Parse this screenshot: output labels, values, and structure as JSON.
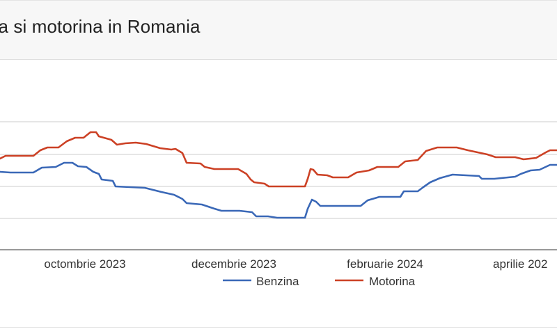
{
  "header": {
    "title": "zina si motorina in Romania"
  },
  "chart_data": {
    "type": "line",
    "x_tick_labels": [
      "octombrie 2023",
      "decembrie 2023",
      "februarie 2024",
      "aprilie 202"
    ],
    "grid": true,
    "legend_position": "bottom",
    "colors": {
      "Benzina": "#3a68b7",
      "Motorina": "#cc4125",
      "grid": "#cccccc",
      "tick_text": "#333333"
    },
    "series": [
      {
        "name": "Benzina",
        "values": [
          [
            0,
            247
          ],
          [
            15,
            248
          ],
          [
            48,
            248
          ],
          [
            60,
            241
          ],
          [
            80,
            240
          ],
          [
            92,
            234
          ],
          [
            104,
            234
          ],
          [
            112,
            239
          ],
          [
            124,
            240
          ],
          [
            134,
            247
          ],
          [
            142,
            250
          ],
          [
            146,
            258
          ],
          [
            162,
            260
          ],
          [
            166,
            268
          ],
          [
            208,
            270
          ],
          [
            232,
            276
          ],
          [
            250,
            280
          ],
          [
            262,
            286
          ],
          [
            268,
            292
          ],
          [
            290,
            294
          ],
          [
            308,
            300
          ],
          [
            318,
            303
          ],
          [
            344,
            303
          ],
          [
            362,
            305
          ],
          [
            368,
            311
          ],
          [
            385,
            311
          ],
          [
            398,
            313
          ],
          [
            438,
            313
          ],
          [
            442,
            300
          ],
          [
            448,
            287
          ],
          [
            454,
            290
          ],
          [
            460,
            296
          ],
          [
            518,
            296
          ],
          [
            528,
            288
          ],
          [
            545,
            283
          ],
          [
            575,
            283
          ],
          [
            580,
            275
          ],
          [
            600,
            275
          ],
          [
            608,
            269
          ],
          [
            618,
            262
          ],
          [
            632,
            256
          ],
          [
            650,
            251
          ],
          [
            688,
            253
          ],
          [
            692,
            257
          ],
          [
            710,
            257
          ],
          [
            740,
            254
          ],
          [
            748,
            250
          ],
          [
            762,
            245
          ],
          [
            775,
            244
          ],
          [
            790,
            237
          ],
          [
            800,
            237
          ]
        ]
      },
      {
        "name": "Motorina",
        "values": [
          [
            0,
            228
          ],
          [
            8,
            224
          ],
          [
            48,
            224
          ],
          [
            58,
            216
          ],
          [
            68,
            212
          ],
          [
            84,
            212
          ],
          [
            96,
            203
          ],
          [
            108,
            198
          ],
          [
            120,
            198
          ],
          [
            130,
            190
          ],
          [
            138,
            190
          ],
          [
            142,
            196
          ],
          [
            160,
            201
          ],
          [
            168,
            208
          ],
          [
            180,
            206
          ],
          [
            195,
            205
          ],
          [
            210,
            207
          ],
          [
            230,
            213
          ],
          [
            246,
            215
          ],
          [
            252,
            214
          ],
          [
            262,
            220
          ],
          [
            268,
            234
          ],
          [
            288,
            235
          ],
          [
            294,
            240
          ],
          [
            308,
            243
          ],
          [
            342,
            243
          ],
          [
            354,
            250
          ],
          [
            360,
            258
          ],
          [
            365,
            262
          ],
          [
            380,
            264
          ],
          [
            386,
            268
          ],
          [
            438,
            268
          ],
          [
            442,
            257
          ],
          [
            446,
            243
          ],
          [
            450,
            244
          ],
          [
            456,
            251
          ],
          [
            470,
            252
          ],
          [
            478,
            255
          ],
          [
            500,
            255
          ],
          [
            512,
            248
          ],
          [
            530,
            245
          ],
          [
            542,
            240
          ],
          [
            572,
            240
          ],
          [
            582,
            232
          ],
          [
            600,
            230
          ],
          [
            612,
            217
          ],
          [
            628,
            212
          ],
          [
            656,
            212
          ],
          [
            672,
            216
          ],
          [
            700,
            222
          ],
          [
            712,
            226
          ],
          [
            740,
            226
          ],
          [
            752,
            229
          ],
          [
            770,
            227
          ],
          [
            784,
            219
          ],
          [
            790,
            216
          ],
          [
            800,
            216
          ]
        ]
      }
    ]
  }
}
